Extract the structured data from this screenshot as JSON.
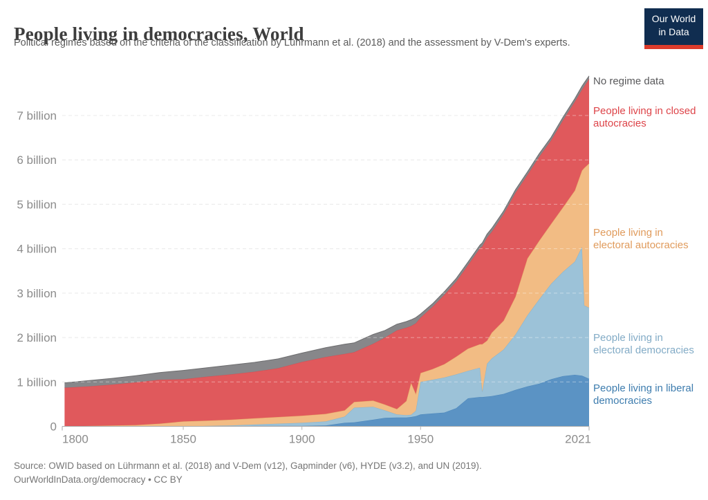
{
  "header": {
    "title": "People living in democracies, World",
    "subtitle": "Political regimes based on the criteria of the classification by Lührmann et al. (2018) and the assessment by V-Dem's experts.",
    "logo": {
      "line1": "Our World",
      "line2": "in Data",
      "bg_color": "#102d50",
      "bar_color": "#dc3b2b"
    }
  },
  "footer": {
    "source_line": "Source: OWID based on Lührmann et al. (2018) and V-Dem (v12), Gapminder (v6), HYDE (v3.2), and UN (2019).",
    "license_line": "OurWorldInData.org/democracy • CC BY"
  },
  "chart_data": {
    "type": "area",
    "stacked": true,
    "unit": "billions of people",
    "title": "People living in democracies, World",
    "grid": "dashed",
    "legend_position": "right-margin",
    "x": [
      1800,
      1810,
      1820,
      1830,
      1840,
      1850,
      1860,
      1870,
      1880,
      1890,
      1900,
      1910,
      1918,
      1922,
      1930,
      1935,
      1940,
      1944,
      1946,
      1948,
      1950,
      1955,
      1960,
      1965,
      1970,
      1975,
      1976,
      1978,
      1980,
      1985,
      1990,
      1995,
      2000,
      2005,
      2010,
      2015,
      2018,
      2019,
      2021
    ],
    "x_axis": {
      "ticks": [
        1800,
        1850,
        1900,
        1950,
        2021
      ],
      "range": [
        1799,
        2021
      ]
    },
    "y_axis": {
      "ticks": [
        0,
        1,
        2,
        3,
        4,
        5,
        6,
        7
      ],
      "tick_labels": [
        "0",
        "1 billion",
        "2 billion",
        "3 billion",
        "4 billion",
        "5 billion",
        "6 billion",
        "7 billion"
      ],
      "range": [
        0,
        7.9
      ]
    },
    "series": [
      {
        "name": "liberal-democracies",
        "label": "People living in liberal democracies",
        "color": "#5b93c4",
        "edge_color": "#4a85ba",
        "label_color": "#3d7cae",
        "values": [
          0,
          0,
          0,
          0,
          0,
          0,
          0,
          0,
          0.01,
          0.01,
          0.01,
          0.02,
          0.08,
          0.09,
          0.15,
          0.19,
          0.2,
          0.2,
          0.21,
          0.23,
          0.27,
          0.29,
          0.31,
          0.41,
          0.63,
          0.66,
          0.66,
          0.67,
          0.68,
          0.73,
          0.82,
          0.9,
          0.96,
          1.06,
          1.13,
          1.16,
          1.14,
          1.12,
          1.07
        ]
      },
      {
        "name": "electoral-democracies",
        "label": "People living in electoral democracies",
        "color": "#9cc2d8",
        "edge_color": "#86b3cd",
        "label_color": "#82abc6",
        "values": [
          0,
          0,
          0,
          0,
          0,
          0,
          0.01,
          0.02,
          0.03,
          0.05,
          0.07,
          0.09,
          0.14,
          0.33,
          0.29,
          0.17,
          0.07,
          0.05,
          0.05,
          0.12,
          0.73,
          0.76,
          0.79,
          0.76,
          0.62,
          0.66,
          0.12,
          0.74,
          0.85,
          1.0,
          1.25,
          1.6,
          1.9,
          2.15,
          2.35,
          2.55,
          2.9,
          1.6,
          1.6
        ]
      },
      {
        "name": "electoral-autocracies",
        "label": "People living in electoral autocracies",
        "color": "#f2bc84",
        "edge_color": "#e8aa68",
        "label_color": "#e09b5c",
        "values": [
          0,
          0.01,
          0.02,
          0.03,
          0.06,
          0.11,
          0.12,
          0.13,
          0.14,
          0.15,
          0.16,
          0.17,
          0.14,
          0.13,
          0.14,
          0.13,
          0.12,
          0.32,
          0.72,
          0.38,
          0.2,
          0.24,
          0.3,
          0.4,
          0.5,
          0.53,
          1.07,
          0.52,
          0.58,
          0.65,
          0.85,
          1.28,
          1.32,
          1.35,
          1.45,
          1.6,
          1.72,
          3.1,
          3.25
        ]
      },
      {
        "name": "closed-autocracies",
        "label": "People living in closed autocracies",
        "color": "#e0595c",
        "edge_color": "#d44d52",
        "label_color": "#dd4348",
        "values": [
          0.87,
          0.89,
          0.92,
          0.96,
          0.99,
          0.95,
          0.99,
          1.02,
          1.05,
          1.1,
          1.21,
          1.28,
          1.27,
          1.12,
          1.28,
          1.51,
          1.77,
          1.65,
          1.28,
          1.59,
          1.25,
          1.4,
          1.56,
          1.69,
          1.88,
          2.16,
          2.2,
          2.32,
          2.27,
          2.4,
          2.34,
          1.88,
          1.89,
          1.88,
          1.96,
          2.0,
          1.82,
          1.84,
          1.9
        ]
      },
      {
        "name": "no-regime-data",
        "label": "No regime data",
        "color": "#87878a",
        "edge_color": "#6c6c6e",
        "label_color": "#58585a",
        "values": [
          0.11,
          0.13,
          0.14,
          0.15,
          0.16,
          0.2,
          0.2,
          0.21,
          0.21,
          0.21,
          0.2,
          0.21,
          0.22,
          0.21,
          0.21,
          0.16,
          0.14,
          0.14,
          0.14,
          0.13,
          0.08,
          0.07,
          0.07,
          0.07,
          0.07,
          0.07,
          0.08,
          0.08,
          0.08,
          0.07,
          0.07,
          0.07,
          0.07,
          0.07,
          0.07,
          0.07,
          0.08,
          0.08,
          0.07
        ]
      }
    ]
  }
}
